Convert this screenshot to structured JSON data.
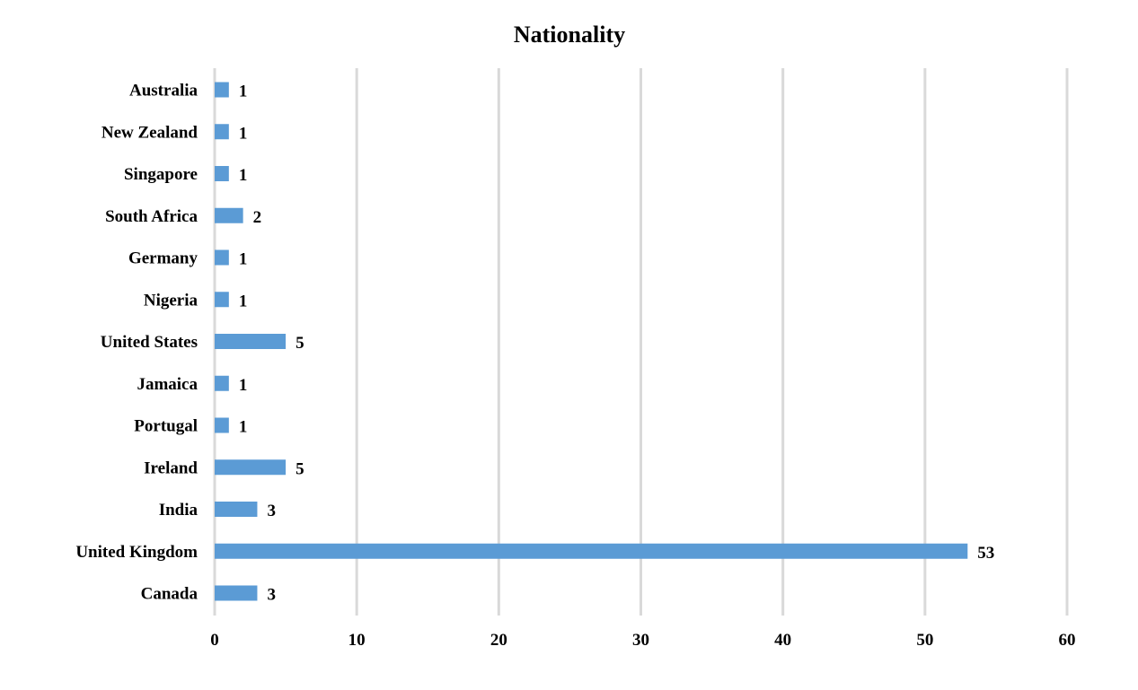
{
  "chart_data": {
    "type": "bar",
    "orientation": "horizontal",
    "title": "Nationality",
    "xlabel": "",
    "ylabel": "",
    "categories": [
      "Australia",
      "New Zealand",
      "Singapore",
      "South Africa",
      "Germany",
      "Nigeria",
      "United States",
      "Jamaica",
      "Portugal",
      "Ireland",
      "India",
      "United Kingdom",
      "Canada"
    ],
    "values": [
      1,
      1,
      1,
      2,
      1,
      1,
      5,
      1,
      1,
      5,
      3,
      53,
      3
    ],
    "data_labels": [
      "1",
      "1",
      "1",
      "2",
      "1",
      "1",
      "5",
      "1",
      "1",
      "5",
      "3",
      "53",
      "3"
    ],
    "xlim": [
      0,
      60
    ],
    "xticks": [
      0,
      10,
      20,
      30,
      40,
      50,
      60
    ],
    "xtick_labels": [
      "0",
      "10",
      "20",
      "30",
      "40",
      "50",
      "60"
    ],
    "grid": "vertical",
    "legend": "none",
    "bar_color": "#5B9BD5",
    "grid_color": "#D9D9D9"
  }
}
